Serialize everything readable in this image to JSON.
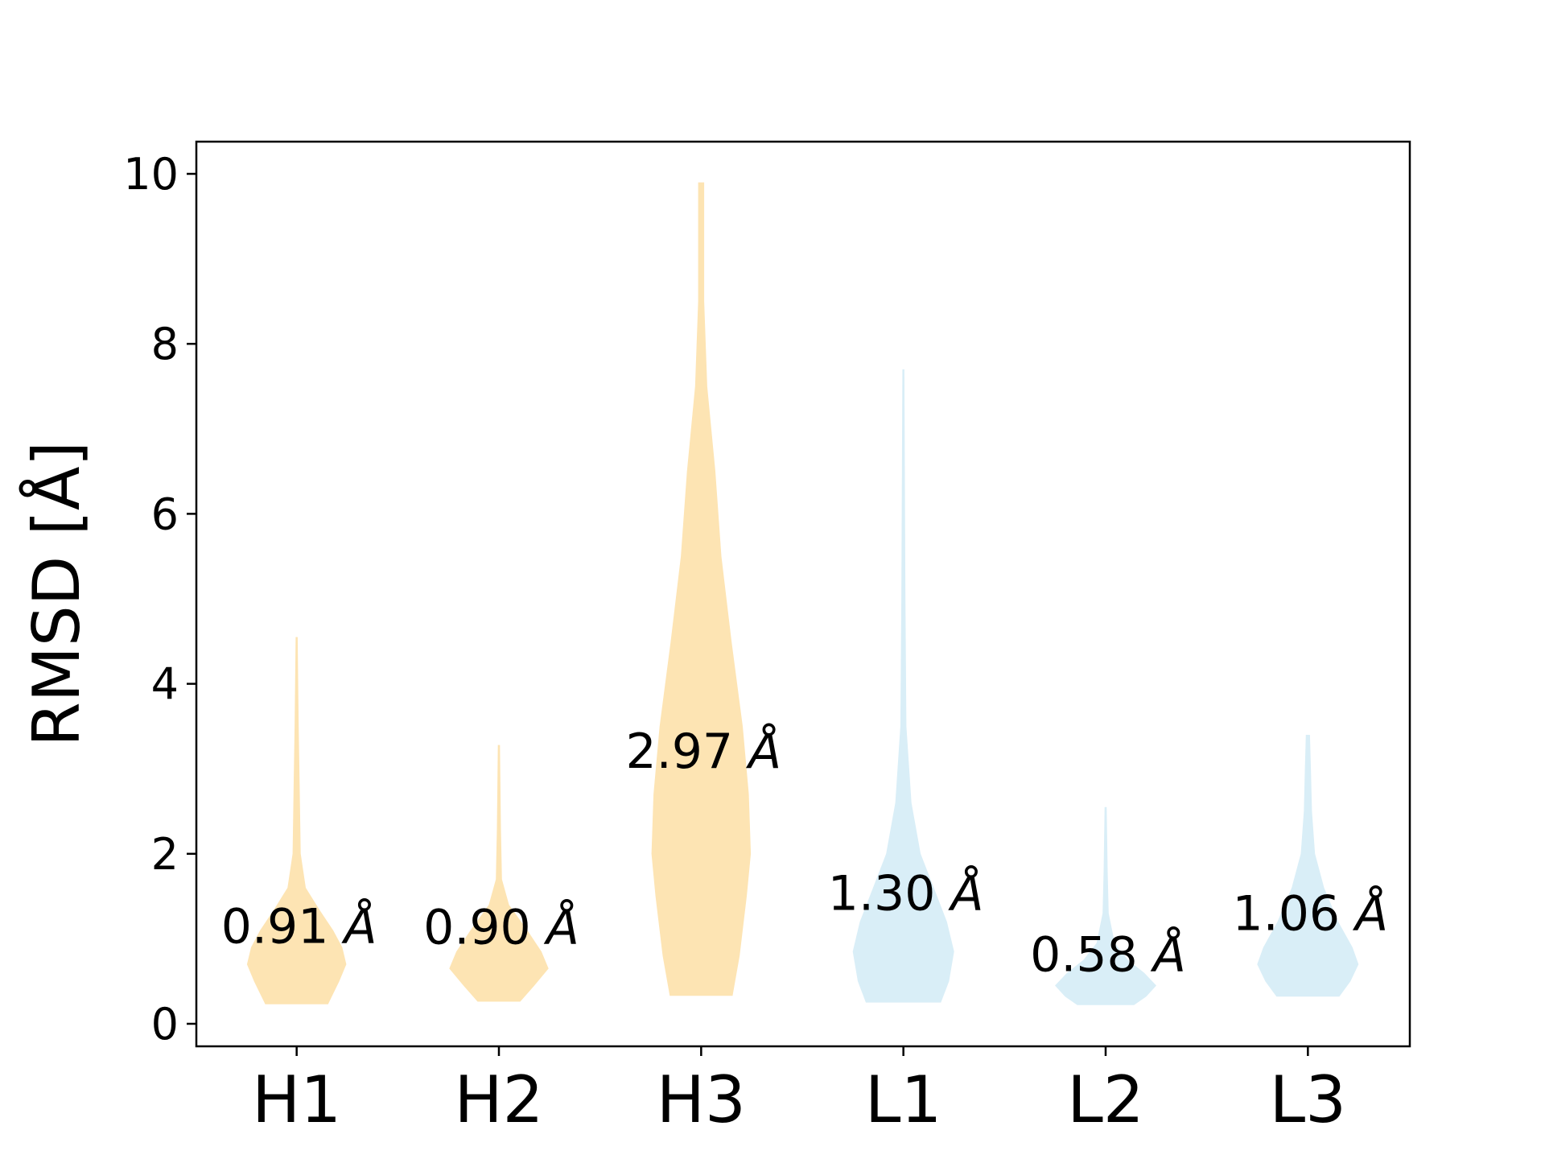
{
  "chart_data": {
    "type": "violin",
    "title": "",
    "xlabel": "",
    "ylabel": "RMSD [Å]",
    "ylim": [
      -0.28,
      10.37
    ],
    "yticks": [
      0,
      2,
      4,
      6,
      8,
      10
    ],
    "grid": false,
    "categories": [
      "H1",
      "H2",
      "H3",
      "L1",
      "L2",
      "L3"
    ],
    "colors": {
      "heavy": "#fde4b3",
      "light": "#d9eef7"
    },
    "violins": [
      {
        "category": "H1",
        "group": "heavy",
        "min": 0.23,
        "max": 4.55,
        "mean_label": "0.91 Å",
        "profile": [
          [
            0.23,
            0.31
          ],
          [
            0.5,
            0.42
          ],
          [
            0.7,
            0.49
          ],
          [
            0.9,
            0.45
          ],
          [
            1.1,
            0.36
          ],
          [
            1.35,
            0.22
          ],
          [
            1.6,
            0.09
          ],
          [
            2.0,
            0.04
          ],
          [
            2.8,
            0.03
          ],
          [
            3.5,
            0.02
          ],
          [
            4.55,
            0.01
          ]
        ]
      },
      {
        "category": "H2",
        "group": "heavy",
        "min": 0.26,
        "max": 3.28,
        "mean_label": "0.90 Å",
        "profile": [
          [
            0.26,
            0.21
          ],
          [
            0.45,
            0.35
          ],
          [
            0.65,
            0.49
          ],
          [
            0.85,
            0.42
          ],
          [
            1.1,
            0.28
          ],
          [
            1.4,
            0.1
          ],
          [
            1.7,
            0.03
          ],
          [
            2.3,
            0.02
          ],
          [
            3.28,
            0.01
          ]
        ]
      },
      {
        "category": "H3",
        "group": "heavy",
        "min": 0.33,
        "max": 9.9,
        "mean_label": "2.97 Å",
        "profile": [
          [
            0.33,
            0.31
          ],
          [
            0.8,
            0.38
          ],
          [
            1.5,
            0.45
          ],
          [
            2.0,
            0.49
          ],
          [
            2.7,
            0.47
          ],
          [
            3.5,
            0.41
          ],
          [
            4.5,
            0.3
          ],
          [
            5.5,
            0.2
          ],
          [
            6.5,
            0.14
          ],
          [
            7.5,
            0.06
          ],
          [
            8.5,
            0.03
          ],
          [
            9.9,
            0.03
          ]
        ]
      },
      {
        "category": "L1",
        "group": "light",
        "min": 0.25,
        "max": 7.7,
        "mean_label": "1.30 Å",
        "profile": [
          [
            0.25,
            0.37
          ],
          [
            0.5,
            0.45
          ],
          [
            0.85,
            0.5
          ],
          [
            1.2,
            0.43
          ],
          [
            1.6,
            0.3
          ],
          [
            2.0,
            0.17
          ],
          [
            2.6,
            0.08
          ],
          [
            3.5,
            0.03
          ],
          [
            5.0,
            0.02
          ],
          [
            7.7,
            0.01
          ]
        ]
      },
      {
        "category": "L2",
        "group": "light",
        "min": 0.22,
        "max": 2.55,
        "mean_label": "0.58 Å",
        "profile": [
          [
            0.22,
            0.28
          ],
          [
            0.32,
            0.4
          ],
          [
            0.45,
            0.5
          ],
          [
            0.6,
            0.38
          ],
          [
            0.75,
            0.22
          ],
          [
            0.95,
            0.09
          ],
          [
            1.3,
            0.03
          ],
          [
            1.8,
            0.02
          ],
          [
            2.55,
            0.01
          ]
        ]
      },
      {
        "category": "L3",
        "group": "light",
        "min": 0.32,
        "max": 3.4,
        "mean_label": "1.06 Å",
        "profile": [
          [
            0.32,
            0.31
          ],
          [
            0.5,
            0.42
          ],
          [
            0.7,
            0.5
          ],
          [
            0.9,
            0.44
          ],
          [
            1.2,
            0.3
          ],
          [
            1.6,
            0.16
          ],
          [
            2.0,
            0.07
          ],
          [
            2.5,
            0.04
          ],
          [
            3.0,
            0.03
          ],
          [
            3.4,
            0.02
          ]
        ]
      }
    ]
  }
}
